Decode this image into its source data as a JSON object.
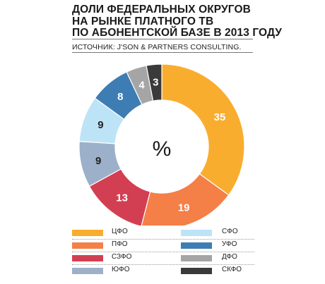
{
  "title": {
    "lines": [
      "ДОЛИ ФЕДЕРАЛЬНЫХ ОКРУГОВ",
      "НА РЫНКЕ ПЛАТНОГО ТВ",
      "ПО АБОНЕНТСКОЙ БАЗЕ В 2013 ГОДУ"
    ]
  },
  "source": "ИСТОЧНИК: J'SON & PARTNERS CONSULTING.",
  "chart_data": {
    "type": "pie",
    "donut": true,
    "center_label": "%",
    "title": "ДОЛИ ФЕДЕРАЛЬНЫХ ОКРУГОВ НА РЫНКЕ ПЛАТНОГО ТВ ПО АБОНЕНТСКОЙ БАЗЕ В 2013 ГОДУ",
    "slices": [
      {
        "label": "ЦФО",
        "value": 35,
        "color": "#f9ad2e"
      },
      {
        "label": "ПФО",
        "value": 19,
        "color": "#f47f47"
      },
      {
        "label": "СЗФО",
        "value": 13,
        "color": "#d33f52"
      },
      {
        "label": "ЮФО",
        "value": 9,
        "color": "#9db0c9"
      },
      {
        "label": "СФО",
        "value": 9,
        "color": "#bde3f6"
      },
      {
        "label": "УФО",
        "value": 8,
        "color": "#3d7db3"
      },
      {
        "label": "ДФО",
        "value": 4,
        "color": "#a5a5a5"
      },
      {
        "label": "СКФО",
        "value": 3,
        "color": "#3a3a3a"
      }
    ],
    "legend_position": "bottom"
  }
}
